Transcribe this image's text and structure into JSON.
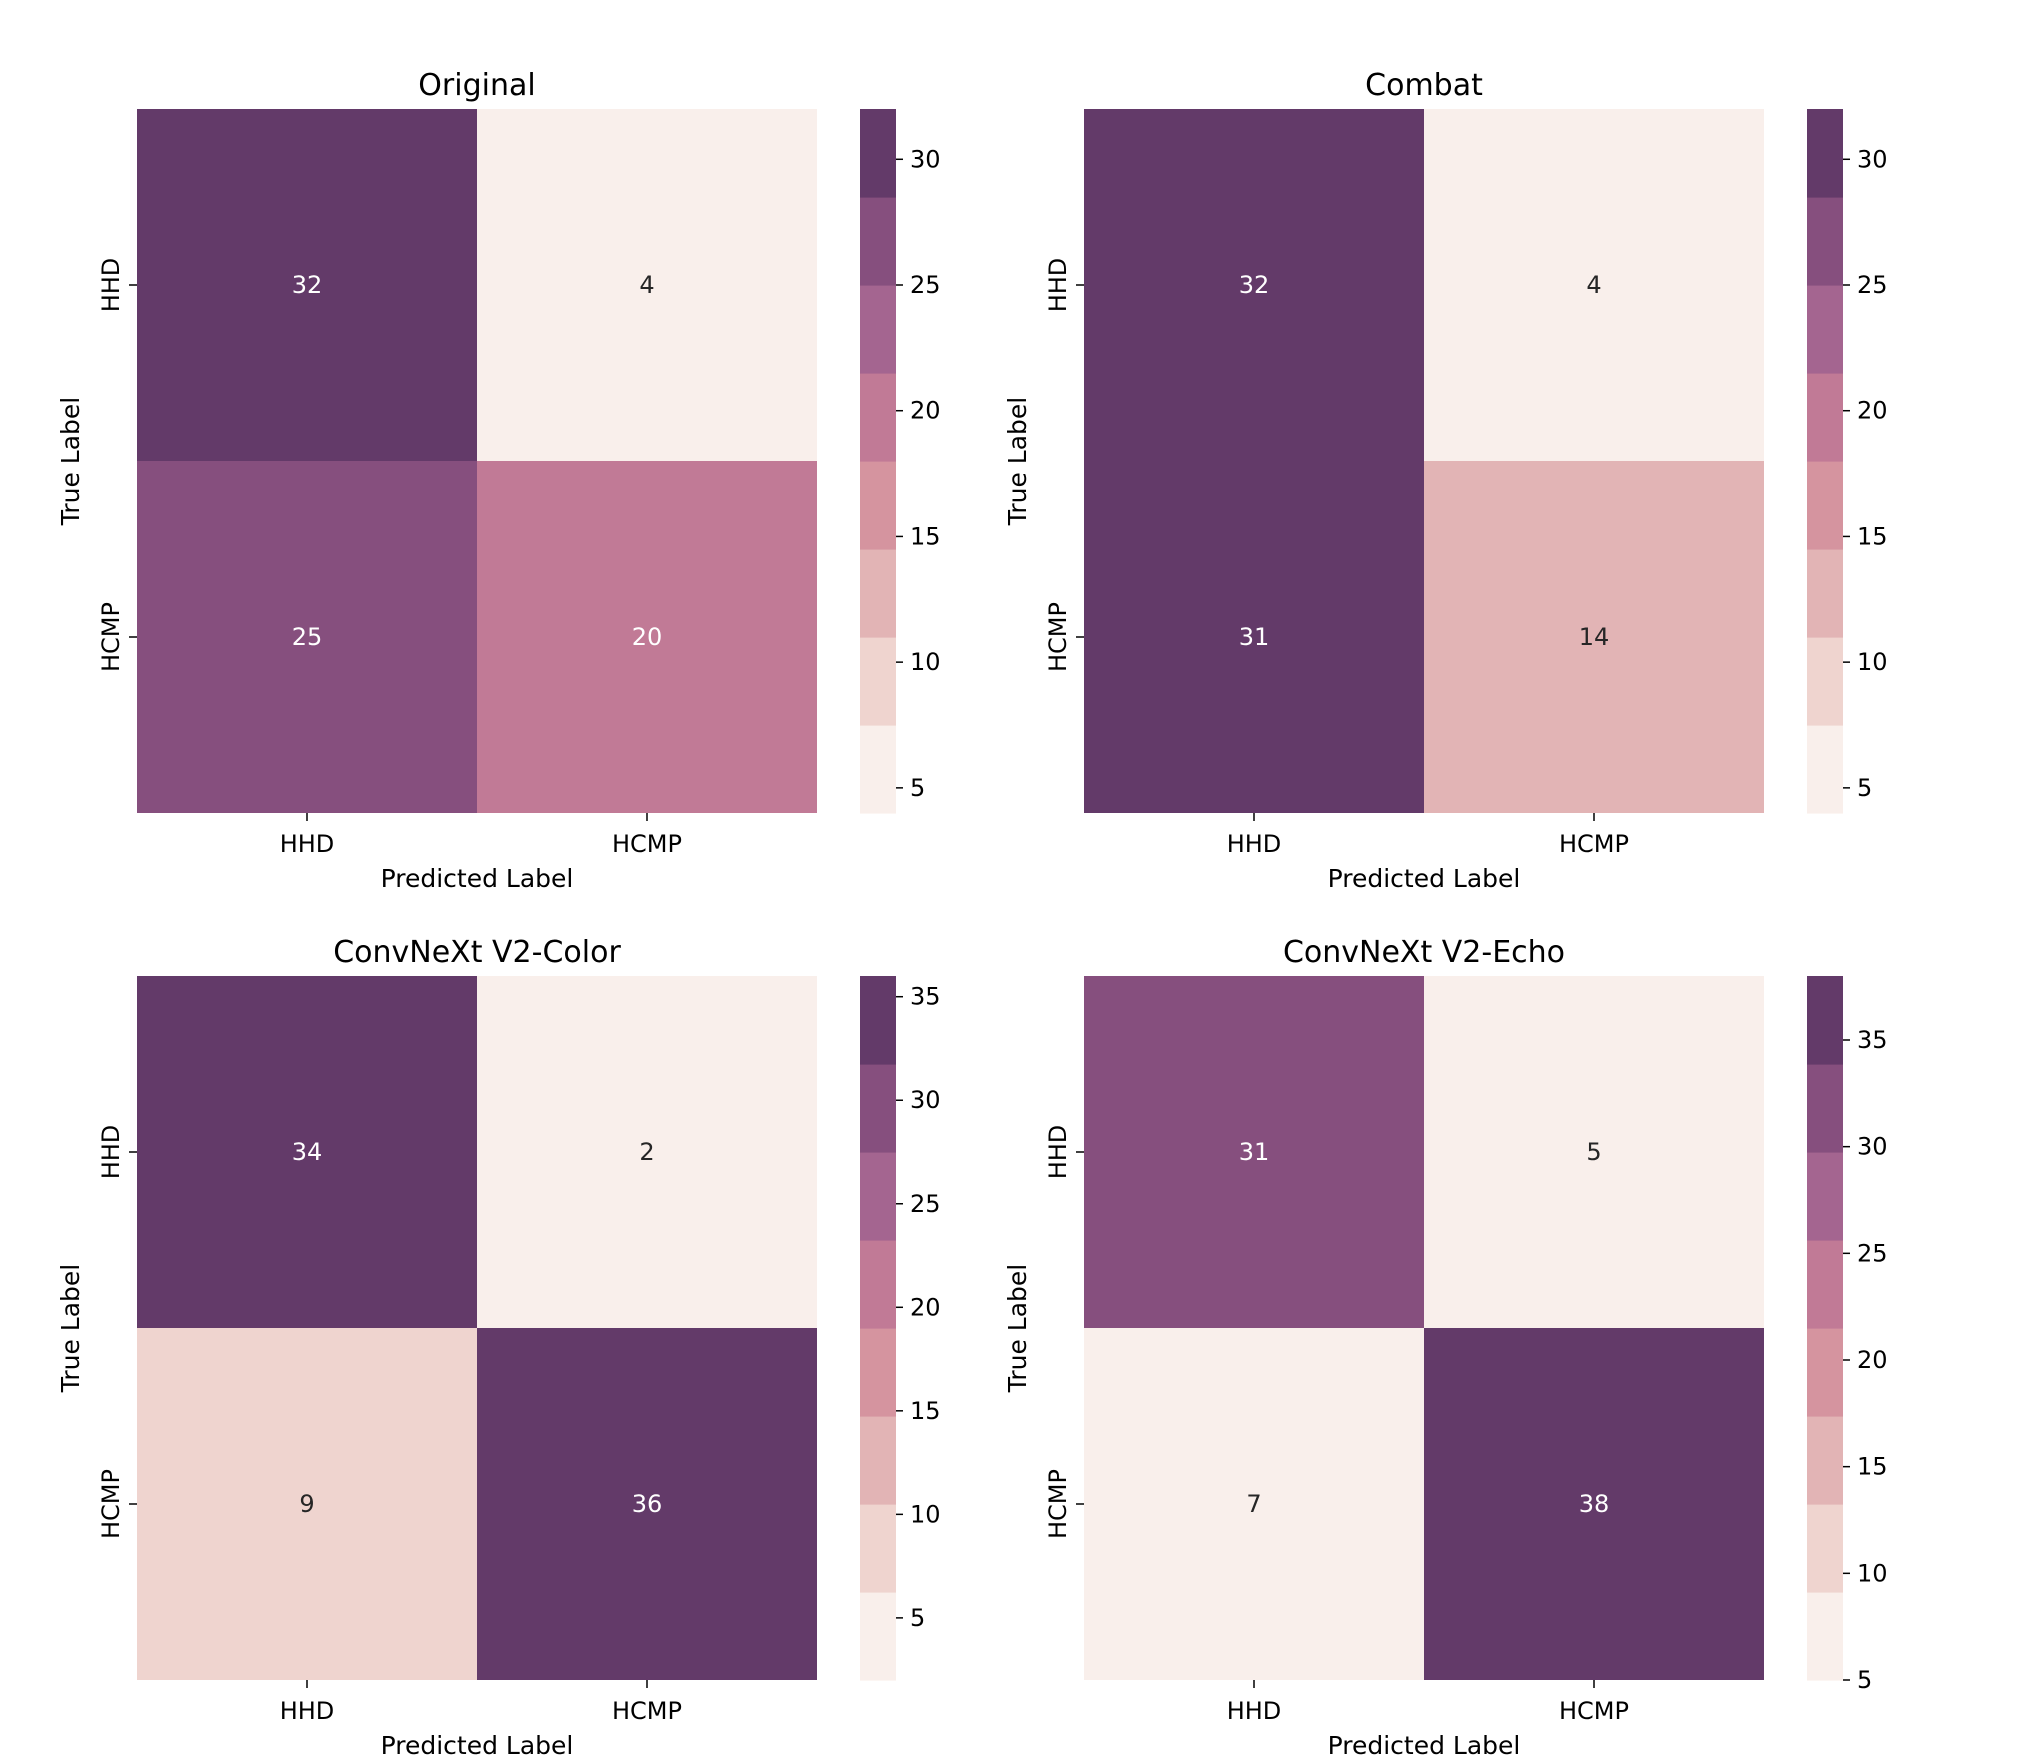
{
  "chart_data": [
    {
      "type": "heatmap",
      "title": "Original",
      "xlabel": "Predicted Label",
      "ylabel": "True Label",
      "x_categories": [
        "HHD",
        "HCMP"
      ],
      "y_categories": [
        "HHD",
        "HCMP"
      ],
      "matrix": [
        [
          32,
          4
        ],
        [
          25,
          20
        ]
      ],
      "colorbar": {
        "range": [
          4,
          32
        ],
        "ticks": [
          5,
          10,
          15,
          20,
          25,
          30
        ],
        "levels": 8
      }
    },
    {
      "type": "heatmap",
      "title": "Combat",
      "xlabel": "Predicted Label",
      "ylabel": "True Label",
      "x_categories": [
        "HHD",
        "HCMP"
      ],
      "y_categories": [
        "HHD",
        "HCMP"
      ],
      "matrix": [
        [
          32,
          4
        ],
        [
          31,
          14
        ]
      ],
      "colorbar": {
        "range": [
          4,
          32
        ],
        "ticks": [
          5,
          10,
          15,
          20,
          25,
          30
        ],
        "levels": 8
      }
    },
    {
      "type": "heatmap",
      "title": "ConvNeXt V2-Color",
      "xlabel": "Predicted Label",
      "ylabel": "True Label",
      "x_categories": [
        "HHD",
        "HCMP"
      ],
      "y_categories": [
        "HHD",
        "HCMP"
      ],
      "matrix": [
        [
          34,
          2
        ],
        [
          9,
          36
        ]
      ],
      "colorbar": {
        "range": [
          2,
          36
        ],
        "ticks": [
          5,
          10,
          15,
          20,
          25,
          30,
          35
        ],
        "levels": 8
      }
    },
    {
      "type": "heatmap",
      "title": "ConvNeXt V2-Echo",
      "xlabel": "Predicted Label",
      "ylabel": "True Label",
      "x_categories": [
        "HHD",
        "HCMP"
      ],
      "y_categories": [
        "HHD",
        "HCMP"
      ],
      "matrix": [
        [
          31,
          5
        ],
        [
          7,
          38
        ]
      ],
      "colorbar": {
        "range": [
          5,
          38
        ],
        "ticks": [
          5,
          10,
          15,
          20,
          25,
          30,
          35
        ],
        "levels": 8
      }
    }
  ],
  "palette": [
    "#f9efeb",
    "#efd4cf",
    "#e2b4b5",
    "#d5949f",
    "#c17a96",
    "#a46590",
    "#864f7e",
    "#633a69"
  ]
}
